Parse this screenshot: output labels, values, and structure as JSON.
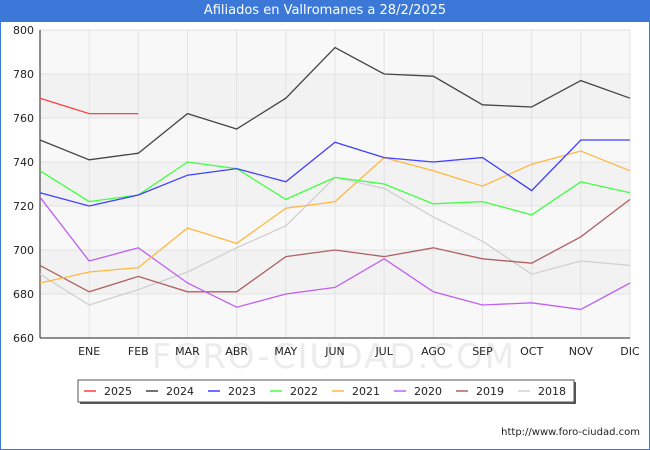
{
  "header": {
    "title": "Afiliados en Vallromanes a 28/2/2025"
  },
  "watermark": "FORO-CIUDAD.COM",
  "footer": {
    "url": "http://www.foro-ciudad.com"
  },
  "chart_data": {
    "type": "line",
    "title": "Afiliados en Vallromanes a 28/2/2025",
    "categories": [
      "",
      "ENE",
      "FEB",
      "MAR",
      "ABR",
      "MAY",
      "JUN",
      "JUL",
      "AGO",
      "SEP",
      "OCT",
      "NOV",
      "DIC"
    ],
    "ylim": [
      660,
      800
    ],
    "yticks": [
      660,
      680,
      700,
      720,
      740,
      760,
      780,
      800
    ],
    "grid": true,
    "legend_position": "bottom",
    "series": [
      {
        "name": "2025",
        "color": "#ff4040",
        "values": [
          769,
          762,
          762,
          null,
          null,
          null,
          null,
          null,
          null,
          null,
          null,
          null,
          null
        ]
      },
      {
        "name": "2024",
        "color": "#444444",
        "values": [
          750,
          741,
          744,
          762,
          755,
          769,
          792,
          780,
          779,
          766,
          765,
          777,
          769
        ]
      },
      {
        "name": "2023",
        "color": "#4040ff",
        "values": [
          726,
          720,
          725,
          734,
          737,
          731,
          749,
          742,
          740,
          742,
          727,
          750,
          750
        ]
      },
      {
        "name": "2022",
        "color": "#40ff40",
        "values": [
          736,
          722,
          725,
          740,
          737,
          723,
          733,
          730,
          721,
          722,
          716,
          731,
          726
        ]
      },
      {
        "name": "2021",
        "color": "#ffb840",
        "values": [
          685,
          690,
          692,
          710,
          703,
          719,
          722,
          742,
          736,
          729,
          739,
          745,
          736
        ]
      },
      {
        "name": "2020",
        "color": "#c060f0",
        "values": [
          724,
          695,
          701,
          685,
          674,
          680,
          683,
          696,
          681,
          675,
          676,
          673,
          685
        ]
      },
      {
        "name": "2019",
        "color": "#b06060",
        "values": [
          693,
          681,
          688,
          681,
          681,
          697,
          700,
          697,
          701,
          696,
          694,
          706,
          723
        ]
      },
      {
        "name": "2018",
        "color": "#d0d0d0",
        "values": [
          689,
          675,
          682,
          690,
          701,
          711,
          733,
          728,
          715,
          704,
          689,
          695,
          693
        ]
      }
    ]
  }
}
